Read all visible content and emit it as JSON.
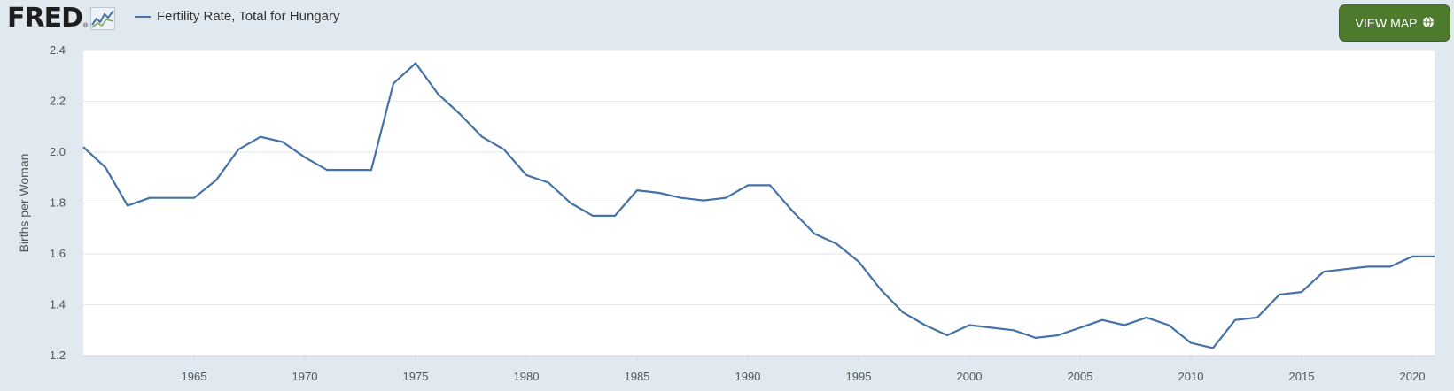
{
  "header": {
    "logo_text": "FRED",
    "logo_reg": "®",
    "view_map_label": "VIEW MAP"
  },
  "colors": {
    "series": "#4572a7",
    "button": "#4e7a2d",
    "background": "#e1e9f0",
    "plot": "#ffffff"
  },
  "icons": [
    "fred-sparkline-icon",
    "globe-icon"
  ],
  "chart_data": {
    "type": "line",
    "title": "",
    "xlabel": "",
    "ylabel": "Births per Woman",
    "grid": true,
    "legend_position": "top-left",
    "xlim": [
      1960,
      2021
    ],
    "ylim": [
      1.2,
      2.4
    ],
    "x_ticks": [
      1965,
      1970,
      1975,
      1980,
      1985,
      1990,
      1995,
      2000,
      2005,
      2010,
      2015,
      2020
    ],
    "y_ticks": [
      1.2,
      1.4,
      1.6,
      1.8,
      2.0,
      2.2,
      2.4
    ],
    "y_tick_labels": [
      "1.2",
      "1.4",
      "1.6",
      "1.8",
      "2.0",
      "2.2",
      "2.4"
    ],
    "series": [
      {
        "name": "Fertility Rate, Total for Hungary",
        "x": [
          1960,
          1961,
          1962,
          1963,
          1964,
          1965,
          1966,
          1967,
          1968,
          1969,
          1970,
          1971,
          1972,
          1973,
          1974,
          1975,
          1976,
          1977,
          1978,
          1979,
          1980,
          1981,
          1982,
          1983,
          1984,
          1985,
          1986,
          1987,
          1988,
          1989,
          1990,
          1991,
          1992,
          1993,
          1994,
          1995,
          1996,
          1997,
          1998,
          1999,
          2000,
          2001,
          2002,
          2003,
          2004,
          2005,
          2006,
          2007,
          2008,
          2009,
          2010,
          2011,
          2012,
          2013,
          2014,
          2015,
          2016,
          2017,
          2018,
          2019,
          2020,
          2021
        ],
        "values": [
          2.02,
          1.94,
          1.79,
          1.82,
          1.82,
          1.82,
          1.89,
          2.01,
          2.06,
          2.04,
          1.98,
          1.93,
          1.93,
          1.93,
          2.27,
          2.35,
          2.23,
          2.15,
          2.06,
          2.01,
          1.91,
          1.88,
          1.8,
          1.75,
          1.75,
          1.85,
          1.84,
          1.82,
          1.81,
          1.82,
          1.87,
          1.87,
          1.77,
          1.68,
          1.64,
          1.57,
          1.46,
          1.37,
          1.32,
          1.28,
          1.32,
          1.31,
          1.3,
          1.27,
          1.28,
          1.31,
          1.34,
          1.32,
          1.35,
          1.32,
          1.25,
          1.23,
          1.34,
          1.35,
          1.44,
          1.45,
          1.53,
          1.54,
          1.55,
          1.55,
          1.59,
          1.59
        ]
      }
    ]
  }
}
